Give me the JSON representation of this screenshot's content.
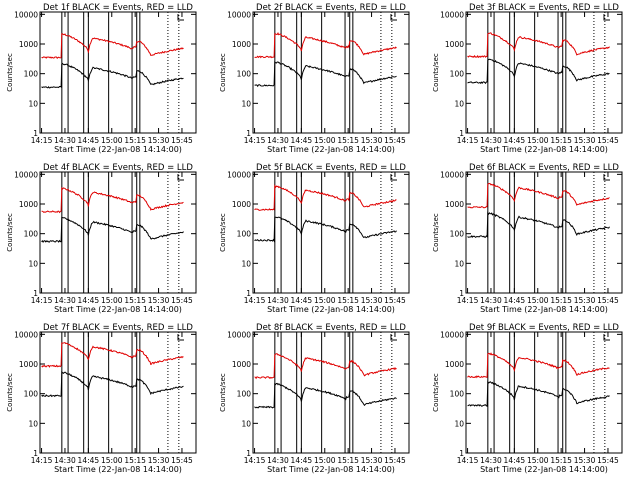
{
  "colors": {
    "events": "#000000",
    "lld": "#e00000",
    "frame": "#000000",
    "background": "#ffffff"
  },
  "chart_data": {
    "type": "line",
    "layout": "3x3-grid",
    "x_axis": {
      "label": "Start Time (22-Jan-08 14:14:00)",
      "ticks": [
        "14:15",
        "14:30",
        "14:45",
        "15:00",
        "15:15",
        "15:30",
        "15:45"
      ],
      "tick_minutes": [
        15,
        30,
        45,
        60,
        75,
        90,
        105
      ],
      "range_minutes": [
        14,
        114
      ]
    },
    "y_axis": {
      "label": "Counts/sec",
      "scale": "log",
      "ticks": [
        "1",
        "10",
        "100",
        "1000",
        "10000"
      ],
      "tick_values": [
        1,
        10,
        100,
        1000,
        10000
      ],
      "range": [
        1,
        12000
      ]
    },
    "vertical_lines_solid_minutes": [
      28,
      32,
      42,
      45,
      58,
      73,
      76,
      78
    ],
    "vertical_lines_dotted_minutes": [
      96,
      103
    ],
    "lld_base": [
      350,
      370,
      380,
      550,
      650,
      780,
      850
    ],
    "events_base": [
      35,
      40,
      50,
      55,
      60,
      80,
      85
    ],
    "panels": [
      {
        "title": "Det 1f BLACK = Events, RED = LLD",
        "series": [
          {
            "name": "Events",
            "color": "#000000",
            "tag": "panel-1"
          },
          {
            "name": "LLD",
            "color": "#e00000"
          }
        ]
      },
      {
        "title": "Det 2f BLACK = Events, RED = LLD",
        "series": [
          {
            "name": "Events",
            "color": "#000000"
          },
          {
            "name": "LLD",
            "color": "#e00000"
          }
        ]
      },
      {
        "title": "Det 3f BLACK = Events, RED = LLD",
        "series": [
          {
            "name": "Events",
            "color": "#000000"
          },
          {
            "name": "LLD",
            "color": "#e00000"
          }
        ]
      },
      {
        "title": "Det 4f BLACK = Events, RED = LLD",
        "series": [
          {
            "name": "Events",
            "color": "#000000"
          },
          {
            "name": "LLD",
            "color": "#e00000"
          }
        ]
      },
      {
        "title": "Det 5f BLACK = Events, RED = LLD",
        "series": [
          {
            "name": "Events",
            "color": "#000000"
          },
          {
            "name": "LLD",
            "color": "#e00000"
          }
        ]
      },
      {
        "title": "Det 6f BLACK = Events, RED = LLD",
        "series": [
          {
            "name": "Events",
            "color": "#000000"
          },
          {
            "name": "LLD",
            "color": "#e00000"
          }
        ]
      },
      {
        "title": "Det 7f BLACK = Events, RED = LLD",
        "series": [
          {
            "name": "Events",
            "color": "#000000"
          },
          {
            "name": "LLD",
            "color": "#e00000"
          }
        ]
      },
      {
        "title": "Det 8f BLACK = Events, RED = LLD",
        "series": [
          {
            "name": "Events",
            "color": "#000000"
          },
          {
            "name": "LLD",
            "color": "#e00000"
          }
        ]
      },
      {
        "title": "Det 9f BLACK = Events, RED = LLD",
        "series": [
          {
            "name": "Events",
            "color": "#000000"
          },
          {
            "name": "LLD",
            "color": "#e00000"
          }
        ]
      }
    ]
  }
}
